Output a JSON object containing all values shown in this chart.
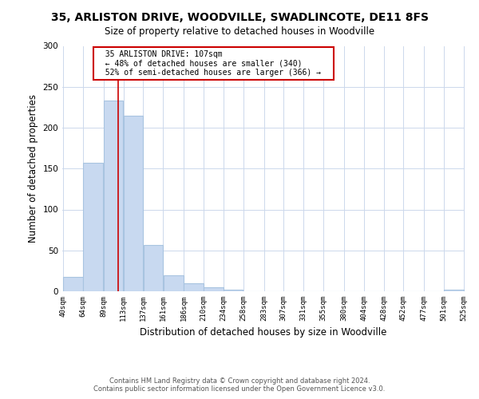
{
  "title": "35, ARLISTON DRIVE, WOODVILLE, SWADLINCOTE, DE11 8FS",
  "subtitle": "Size of property relative to detached houses in Woodville",
  "xlabel": "Distribution of detached houses by size in Woodville",
  "ylabel": "Number of detached properties",
  "bar_edges": [
    40,
    64,
    89,
    113,
    137,
    161,
    186,
    210,
    234,
    258,
    283,
    307,
    331,
    355,
    380,
    404,
    428,
    452,
    477,
    501,
    525
  ],
  "bar_heights": [
    18,
    157,
    233,
    215,
    57,
    20,
    10,
    5,
    2,
    0,
    0,
    0,
    0,
    0,
    0,
    0,
    0,
    0,
    0,
    2
  ],
  "bar_color": "#c8d9f0",
  "bar_edge_color": "#a8c4e0",
  "vline_x": 107,
  "vline_color": "#cc0000",
  "ylim": [
    0,
    300
  ],
  "yticks": [
    0,
    50,
    100,
    150,
    200,
    250,
    300
  ],
  "annotation_title": "35 ARLISTON DRIVE: 107sqm",
  "annotation_line1": "← 48% of detached houses are smaller (340)",
  "annotation_line2": "52% of semi-detached houses are larger (366) →",
  "footer_line1": "Contains HM Land Registry data © Crown copyright and database right 2024.",
  "footer_line2": "Contains public sector information licensed under the Open Government Licence v3.0.",
  "tick_labels": [
    "40sqm",
    "64sqm",
    "89sqm",
    "113sqm",
    "137sqm",
    "161sqm",
    "186sqm",
    "210sqm",
    "234sqm",
    "258sqm",
    "283sqm",
    "307sqm",
    "331sqm",
    "355sqm",
    "380sqm",
    "404sqm",
    "428sqm",
    "452sqm",
    "477sqm",
    "501sqm",
    "525sqm"
  ],
  "background_color": "#ffffff",
  "grid_color": "#ccd8ec"
}
